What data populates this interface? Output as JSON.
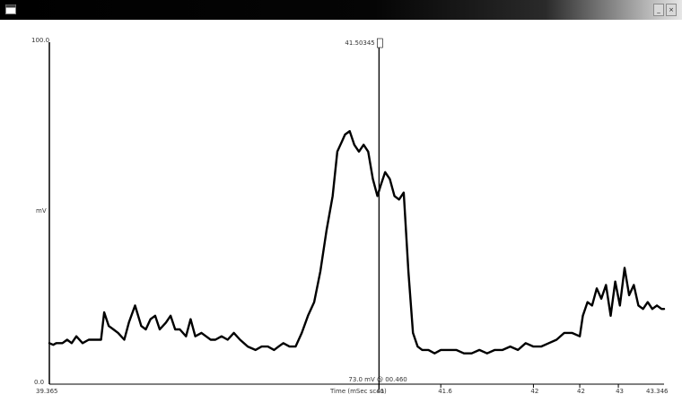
{
  "window": {
    "icon": "app-window-icon",
    "controls": [
      {
        "name": "minimize-button",
        "glyph": "_"
      },
      {
        "name": "close-button",
        "glyph": "×"
      }
    ]
  },
  "chart_data": {
    "type": "line",
    "title": "",
    "xlabel": "Time (mSec scan)",
    "ylabel": "mV",
    "xlim": [
      39.365,
      43.346
    ],
    "ylim": [
      0.0,
      100.0
    ],
    "y_top_label": "100.0",
    "y_mid_label": "mV",
    "y_bottom_label": "0.0",
    "x_start_label": "39.365",
    "x_end_label": "43.346",
    "grid": false,
    "legend": "none",
    "cursor": {
      "x": 41.5,
      "top_label": "41.50345",
      "bottom_label": "73.0 mV @ 00.460"
    },
    "bottom_ticks": [
      {
        "x": 41.5,
        "label": "41"
      },
      {
        "x": 41.9,
        "label": "41.6"
      },
      {
        "x": 42.5,
        "label": "42"
      },
      {
        "x": 42.8,
        "label": "42"
      },
      {
        "x": 43.05,
        "label": "43"
      }
    ],
    "series": [
      {
        "color": "#000000",
        "x": [
          39.365,
          39.39,
          39.41,
          39.45,
          39.48,
          39.51,
          39.54,
          39.58,
          39.62,
          39.66,
          39.7,
          39.72,
          39.75,
          39.78,
          39.81,
          39.85,
          39.88,
          39.92,
          39.96,
          39.99,
          40.02,
          40.05,
          40.08,
          40.12,
          40.15,
          40.18,
          40.21,
          40.25,
          40.28,
          40.31,
          40.35,
          40.38,
          40.41,
          40.44,
          40.48,
          40.52,
          40.56,
          40.6,
          40.65,
          40.7,
          40.74,
          40.78,
          40.82,
          40.85,
          40.88,
          40.92,
          40.96,
          41.0,
          41.04,
          41.08,
          41.12,
          41.16,
          41.2,
          41.23,
          41.26,
          41.28,
          41.31,
          41.34,
          41.37,
          41.4,
          41.43,
          41.46,
          41.49,
          41.51,
          41.54,
          41.57,
          41.6,
          41.63,
          41.66,
          41.69,
          41.72,
          41.75,
          41.78,
          41.82,
          41.86,
          41.9,
          41.95,
          42.0,
          42.05,
          42.1,
          42.15,
          42.2,
          42.25,
          42.3,
          42.35,
          42.4,
          42.45,
          42.5,
          42.55,
          42.6,
          42.65,
          42.7,
          42.75,
          42.8,
          42.82,
          42.85,
          42.88,
          42.91,
          42.94,
          42.97,
          43.0,
          43.03,
          43.06,
          43.09,
          43.12,
          43.15,
          43.18,
          43.21,
          43.24,
          43.27,
          43.3,
          43.33,
          43.346
        ],
        "y": [
          12,
          11.5,
          12,
          12,
          13,
          12,
          14,
          12,
          13,
          13,
          13,
          21,
          17,
          16,
          15,
          13,
          18,
          23,
          17,
          16,
          19,
          20,
          16,
          18,
          20,
          16,
          16,
          14,
          19,
          14,
          15,
          14,
          13,
          13,
          14,
          13,
          15,
          13,
          11,
          10,
          11,
          11,
          10,
          11,
          12,
          11,
          11,
          15,
          20,
          24,
          33,
          45,
          55,
          68,
          71,
          73,
          74,
          70,
          68,
          70,
          68,
          60,
          55,
          58,
          62,
          60,
          55,
          54,
          56,
          33,
          15,
          11,
          10,
          10,
          9,
          10,
          10,
          10,
          9,
          9,
          10,
          9,
          10,
          10,
          11,
          10,
          12,
          11,
          11,
          12,
          13,
          15,
          15,
          14,
          20,
          24,
          23,
          28,
          25,
          29,
          20,
          30,
          23,
          34,
          26,
          29,
          23,
          22,
          24,
          22,
          23,
          22,
          22
        ]
      }
    ]
  }
}
